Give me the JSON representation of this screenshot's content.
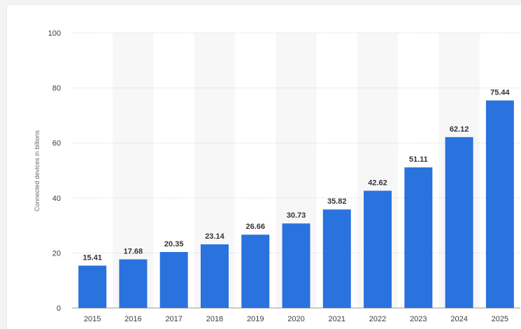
{
  "chart_data": {
    "type": "bar",
    "categories": [
      "2015",
      "2016",
      "2017",
      "2018",
      "2019",
      "2020",
      "2021",
      "2022",
      "2023",
      "2024",
      "2025"
    ],
    "values": [
      15.41,
      17.68,
      20.35,
      23.14,
      26.66,
      30.73,
      35.82,
      42.62,
      51.11,
      62.12,
      75.44
    ],
    "value_labels": [
      "15.41",
      "17.68",
      "20.35",
      "23.14",
      "26.66",
      "30.73",
      "35.82",
      "42.62",
      "51.11",
      "62.12",
      "75.44"
    ],
    "ylabel": "Connected devices in billions",
    "ylim": [
      0,
      100
    ],
    "yticks": [
      "0",
      "20",
      "40",
      "60",
      "80",
      "100"
    ],
    "ytick_values": [
      0,
      20,
      40,
      60,
      80,
      100
    ],
    "grid": true,
    "bar_color": "#2a72dd",
    "band_color": "#f7f7f7",
    "grid_color": "#c8c8c8"
  }
}
